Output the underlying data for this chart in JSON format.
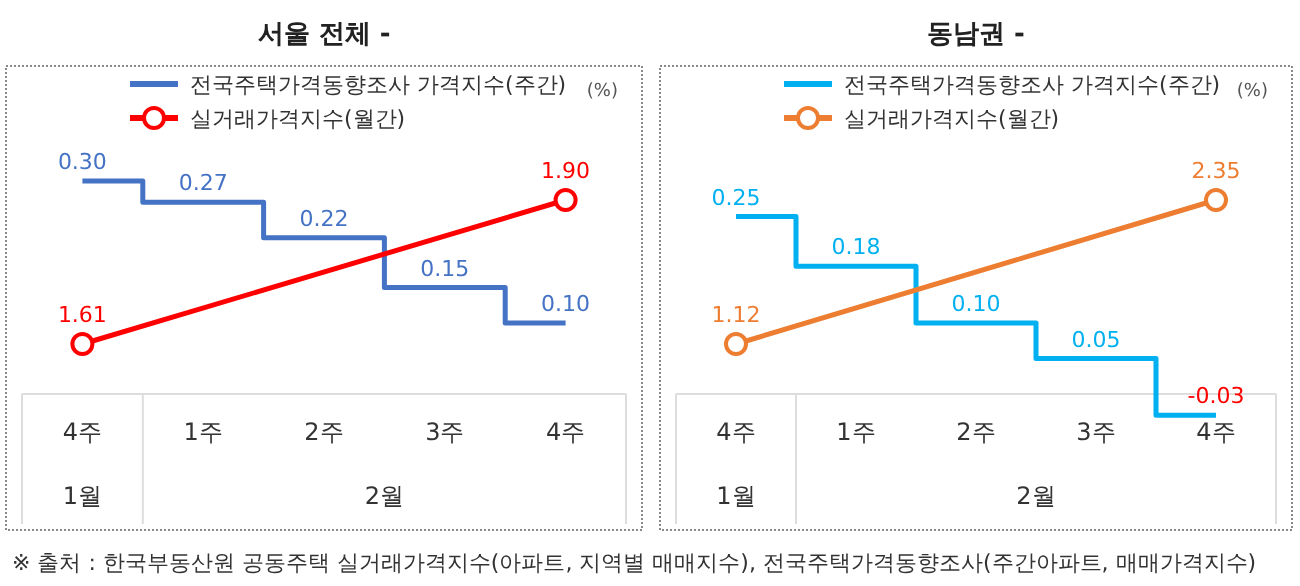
{
  "chart_data": [
    {
      "type": "step",
      "title": "서울 전체 -",
      "ylabel": "(%)",
      "categories": [
        "4주",
        "1주",
        "2주",
        "3주",
        "4주"
      ],
      "legend": "top",
      "data_labels": true,
      "series": [
        {
          "name": "전국주택가격동향조사 가격지수(주간)",
          "color": "#4472c4",
          "values": [
            0.3,
            0.27,
            0.22,
            0.15,
            0.1
          ],
          "value_labels": [
            "0.30",
            "0.27",
            "0.22",
            "0.15",
            "0.10"
          ]
        },
        {
          "name": "실거래가격지수(월간)",
          "type": "line",
          "marker": "circle",
          "axis": "y2",
          "color": "#ff0000",
          "values": [
            1.61,
            null,
            null,
            null,
            1.9
          ],
          "value_labels": [
            "1.61",
            null,
            null,
            null,
            "1.90"
          ]
        }
      ],
      "annotations": [
        "1월",
        "2월"
      ]
    },
    {
      "type": "step",
      "title": "동남권 -",
      "ylabel": "(%)",
      "categories": [
        "4주",
        "1주",
        "2주",
        "3주",
        "4주"
      ],
      "legend": "top",
      "data_labels": true,
      "series": [
        {
          "name": "전국주택가격동향조사 가격지수(주간)",
          "color": "#00b0f0",
          "values": [
            0.25,
            0.18,
            0.1,
            0.05,
            -0.03
          ],
          "value_labels": [
            "0.25",
            "0.18",
            "0.10",
            "0.05",
            "-0.03"
          ]
        },
        {
          "name": "실거래가격지수(월간)",
          "type": "line",
          "marker": "circle",
          "axis": "y2",
          "color": "#ed7d31",
          "values": [
            1.12,
            null,
            null,
            null,
            2.35
          ],
          "value_labels": [
            "1.12",
            null,
            null,
            null,
            "2.35"
          ]
        }
      ],
      "annotations": [
        "1월",
        "2월",
        "※ 출처 : 한국부동산원 공동주택 실거래가격지수(아파트, 지역별 매매지수), 전국주택가격동향조사(주간아파트, 매매가격지수)"
      ]
    }
  ]
}
